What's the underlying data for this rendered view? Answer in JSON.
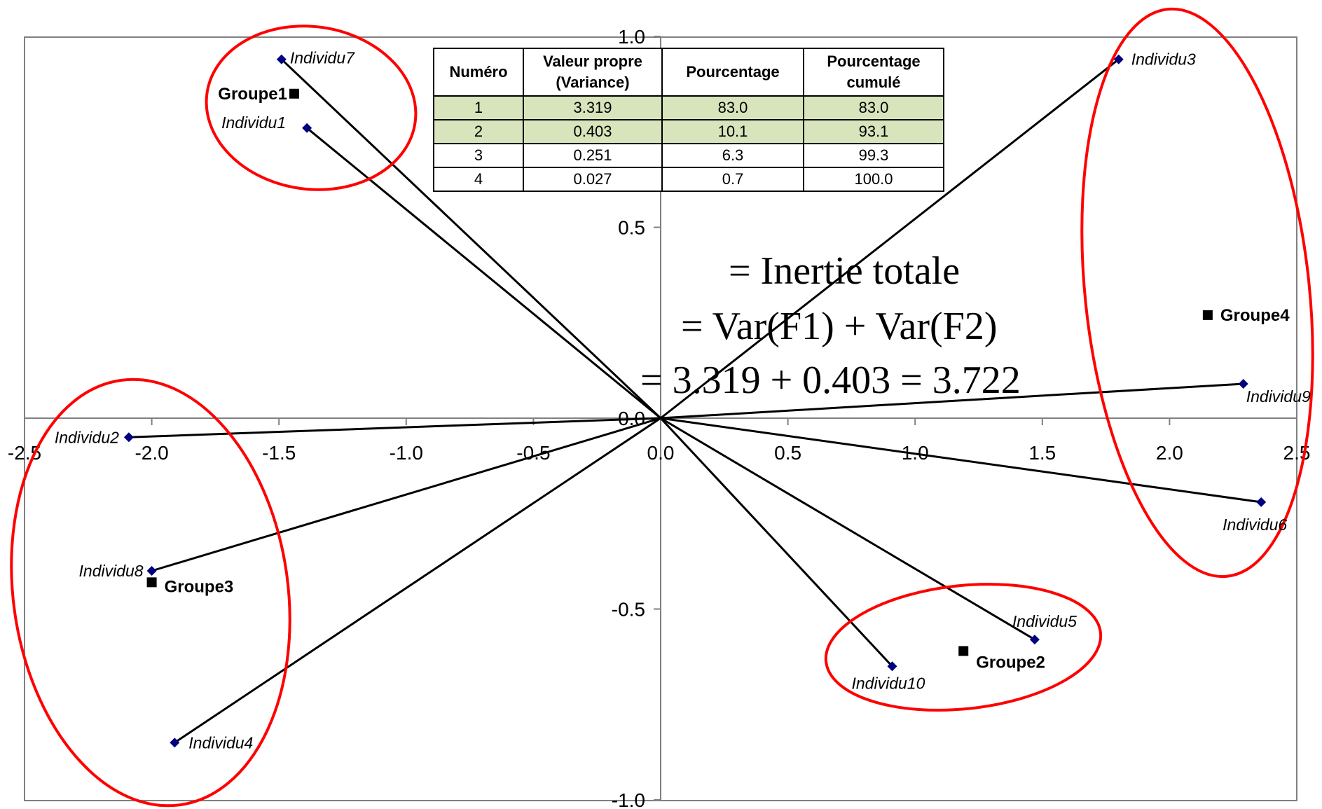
{
  "chart_data": {
    "type": "scatter",
    "title": "",
    "xlabel": "",
    "ylabel": "",
    "xlim": [
      -2.5,
      2.5
    ],
    "ylim": [
      -1.0,
      1.0
    ],
    "x_ticks": [
      -2.5,
      -2.0,
      -1.5,
      -1.0,
      -0.5,
      0.0,
      0.5,
      1.0,
      1.5,
      2.0,
      2.5
    ],
    "y_ticks": [
      -1.0,
      -0.5,
      0.0,
      0.5,
      1.0
    ],
    "x_tick_labels": [
      "-2.5",
      "-2.0",
      "-1.5",
      "-1.0",
      "-0.5",
      "0.0",
      "0.5",
      "1.0",
      "1.5",
      "2.0",
      "2.5"
    ],
    "y_tick_labels": [
      "-1.0",
      "-0.5",
      "0.0",
      "0.5",
      "1.0"
    ],
    "grid": false,
    "individuals": [
      {
        "label": "Individu1",
        "x": -1.39,
        "y": 0.76
      },
      {
        "label": "Individu2",
        "x": -2.09,
        "y": -0.05
      },
      {
        "label": "Individu3",
        "x": 1.8,
        "y": 0.94
      },
      {
        "label": "Individu4",
        "x": -1.91,
        "y": -0.85
      },
      {
        "label": "Individu5",
        "x": 1.47,
        "y": -0.58
      },
      {
        "label": "Individu6",
        "x": 2.36,
        "y": -0.22
      },
      {
        "label": "Individu7",
        "x": -1.49,
        "y": 0.94
      },
      {
        "label": "Individu8",
        "x": -2.0,
        "y": -0.4
      },
      {
        "label": "Individu9",
        "x": 2.29,
        "y": 0.09
      },
      {
        "label": "Individu10",
        "x": 0.91,
        "y": -0.65
      }
    ],
    "groups": [
      {
        "label": "Groupe1",
        "x": -1.44,
        "y": 0.85
      },
      {
        "label": "Groupe2",
        "x": 1.19,
        "y": -0.61
      },
      {
        "label": "Groupe3",
        "x": -2.0,
        "y": -0.43
      },
      {
        "label": "Groupe4",
        "x": 2.15,
        "y": 0.27
      }
    ],
    "annotations": [
      "= Inertie totale",
      "= Var(F1) + Var(F2)",
      "= 3.319 + 0.403 = 3.722"
    ],
    "colors": {
      "individual_marker": "#000080",
      "group_marker": "#000000",
      "line": "#000000",
      "ellipse": "#ff0000",
      "highlight_row": "#d8e4bc",
      "frame": "#808080"
    },
    "eigen_table": {
      "headers": [
        "Numéro",
        "Valeur propre (Variance)",
        "Pourcentage",
        "Pourcentage cumulé"
      ],
      "rows": [
        [
          "1",
          "3.319",
          "83.0",
          "83.0"
        ],
        [
          "2",
          "0.403",
          "10.1",
          "93.1"
        ],
        [
          "3",
          "0.251",
          "6.3",
          "99.3"
        ],
        [
          "4",
          "0.027",
          "0.7",
          "100.0"
        ]
      ],
      "highlighted_rows": [
        0,
        1
      ]
    }
  }
}
